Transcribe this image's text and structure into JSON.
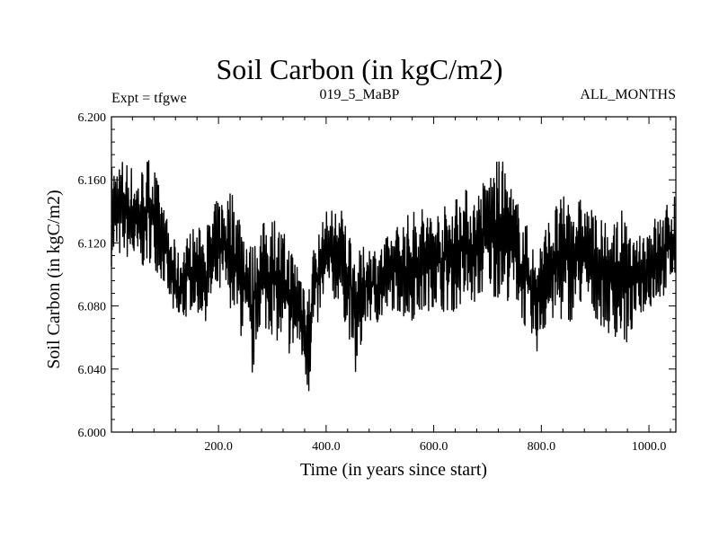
{
  "chart_data": {
    "type": "line",
    "title": "Soil Carbon (in kgC/m2)",
    "subtitle_left": "Expt = tfgwe",
    "subtitle_center": "019_5_MaBP",
    "subtitle_right": "ALL_MONTHS",
    "xlabel": "Time (in years since start)",
    "ylabel": "Soil Carbon (in kgC/m2)",
    "xlim": [
      1,
      1050
    ],
    "ylim": [
      6.0,
      6.2
    ],
    "xticks": [
      200,
      400,
      600,
      800,
      1000
    ],
    "xtick_labels": [
      "200.0",
      "400.0",
      "600.0",
      "800.0",
      "1000.0"
    ],
    "yticks": [
      6.0,
      6.04,
      6.08,
      6.12,
      6.16,
      6.2
    ],
    "ytick_labels": [
      "6.000",
      "6.040",
      "6.080",
      "6.120",
      "6.160",
      "6.200"
    ],
    "series": [
      {
        "name": "Soil Carbon",
        "color": "#000000",
        "envelope_x": [
          1,
          25,
          50,
          75,
          100,
          125,
          150,
          175,
          200,
          225,
          250,
          262,
          275,
          300,
          325,
          350,
          368,
          375,
          400,
          425,
          450,
          455,
          475,
          500,
          525,
          550,
          575,
          600,
          625,
          650,
          675,
          700,
          725,
          750,
          775,
          790,
          800,
          825,
          850,
          875,
          900,
          925,
          950,
          960,
          975,
          1000,
          1025,
          1050
        ],
        "envelope_min": [
          6.105,
          6.112,
          6.1,
          6.108,
          6.092,
          6.062,
          6.078,
          6.07,
          6.085,
          6.078,
          6.05,
          6.03,
          6.065,
          6.062,
          6.048,
          6.05,
          6.022,
          6.055,
          6.085,
          6.082,
          6.05,
          6.032,
          6.07,
          6.068,
          6.078,
          6.07,
          6.072,
          6.08,
          6.075,
          6.078,
          6.08,
          6.09,
          6.082,
          6.085,
          6.06,
          6.048,
          6.06,
          6.07,
          6.068,
          6.08,
          6.072,
          6.062,
          6.058,
          6.052,
          6.072,
          6.078,
          6.085,
          6.095
        ],
        "envelope_max": [
          6.17,
          6.175,
          6.165,
          6.178,
          6.14,
          6.115,
          6.13,
          6.13,
          6.15,
          6.155,
          6.135,
          6.118,
          6.13,
          6.14,
          6.125,
          6.11,
          6.095,
          6.118,
          6.14,
          6.145,
          6.125,
          6.112,
          6.12,
          6.118,
          6.13,
          6.138,
          6.145,
          6.14,
          6.145,
          6.158,
          6.15,
          6.165,
          6.175,
          6.152,
          6.13,
          6.115,
          6.125,
          6.145,
          6.152,
          6.148,
          6.14,
          6.13,
          6.142,
          6.13,
          6.12,
          6.135,
          6.14,
          6.155
        ]
      }
    ]
  }
}
